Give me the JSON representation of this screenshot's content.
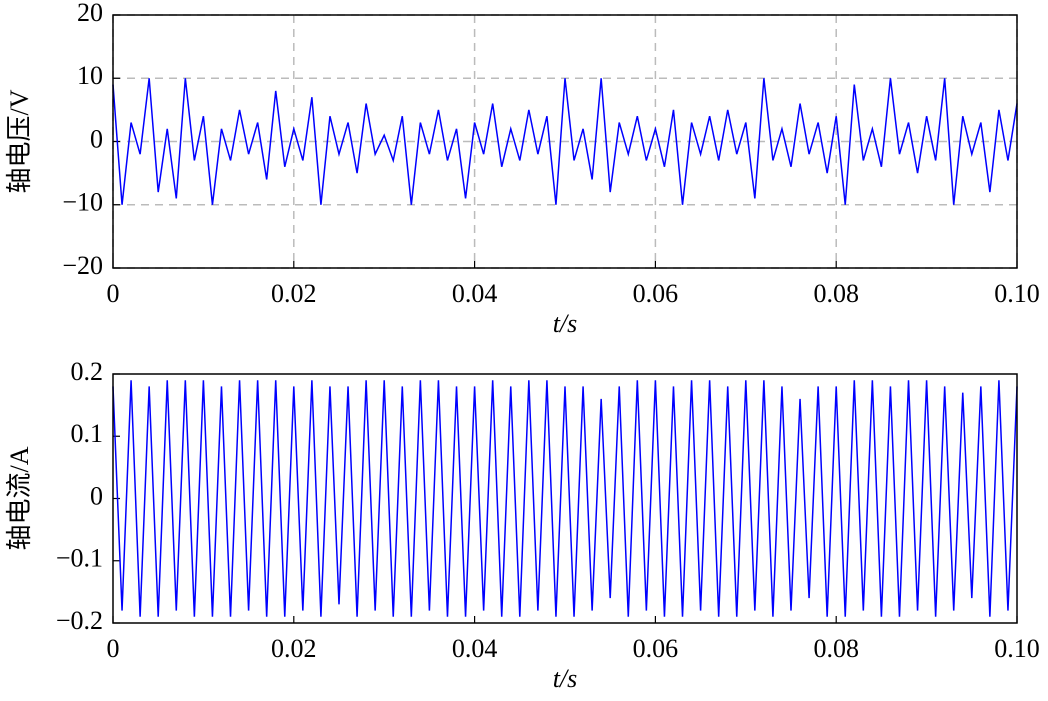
{
  "chart_data": [
    {
      "type": "line",
      "ylabel": "轴电压/V",
      "xlabel": "t/s",
      "color": "#0000ff",
      "grid": true,
      "x": [
        0,
        0.001,
        0.002,
        0.003,
        0.004,
        0.005,
        0.006,
        0.007,
        0.008,
        0.009,
        0.01,
        0.011,
        0.012,
        0.013,
        0.014,
        0.015,
        0.016,
        0.017,
        0.018,
        0.019,
        0.02,
        0.021,
        0.022,
        0.023,
        0.024,
        0.025,
        0.026,
        0.027,
        0.028,
        0.029,
        0.03,
        0.031,
        0.032,
        0.033,
        0.034,
        0.035,
        0.036,
        0.037,
        0.038,
        0.039,
        0.04,
        0.041,
        0.042,
        0.043,
        0.044,
        0.045,
        0.046,
        0.047,
        0.048,
        0.049,
        0.05,
        0.051,
        0.052,
        0.053,
        0.054,
        0.055,
        0.056,
        0.057,
        0.058,
        0.059,
        0.06,
        0.061,
        0.062,
        0.063,
        0.064,
        0.065,
        0.066,
        0.067,
        0.068,
        0.069,
        0.07,
        0.071,
        0.072,
        0.073,
        0.074,
        0.075,
        0.076,
        0.077,
        0.078,
        0.079,
        0.08,
        0.081,
        0.082,
        0.083,
        0.084,
        0.085,
        0.086,
        0.087,
        0.088,
        0.089,
        0.09,
        0.091,
        0.092,
        0.093,
        0.094,
        0.095,
        0.096,
        0.097,
        0.098,
        0.099,
        0.1
      ],
      "values": [
        9,
        -10,
        3,
        -2,
        10,
        -8,
        2,
        -9,
        10,
        -3,
        4,
        -10,
        2,
        -3,
        5,
        -2,
        3,
        -6,
        8,
        -4,
        2,
        -3,
        7,
        -10,
        4,
        -2,
        3,
        -5,
        6,
        -2,
        1,
        -3,
        4,
        -10,
        3,
        -2,
        5,
        -3,
        2,
        -9,
        3,
        -2,
        6,
        -4,
        2,
        -3,
        5,
        -2,
        4,
        -10,
        10,
        -3,
        2,
        -6,
        10,
        -8,
        3,
        -2,
        4,
        -3,
        2,
        -4,
        5,
        -10,
        3,
        -2,
        4,
        -3,
        5,
        -2,
        3,
        -9,
        10,
        -3,
        2,
        -4,
        6,
        -2,
        3,
        -5,
        4,
        -10,
        9,
        -3,
        2,
        -4,
        10,
        -2,
        3,
        -5,
        4,
        -3,
        10,
        -10,
        4,
        -2,
        3,
        -8,
        5,
        -3,
        6
      ],
      "xlim": [
        0,
        0.1
      ],
      "xticks": [
        0,
        0.02,
        0.04,
        0.06,
        0.08,
        {
          "value": 0.1,
          "label": "0.10"
        }
      ],
      "ylim": [
        -20,
        20
      ],
      "yticks": [
        {
          "value": -20,
          "label": "−20"
        },
        {
          "value": -10,
          "label": "−10"
        },
        0,
        10,
        20
      ]
    },
    {
      "type": "line",
      "ylabel": "轴电流/A",
      "xlabel": "t/s",
      "color": "#0000ff",
      "grid": false,
      "x": [
        0,
        0.001,
        0.002,
        0.003,
        0.004,
        0.005,
        0.006,
        0.007,
        0.008,
        0.009,
        0.01,
        0.011,
        0.012,
        0.013,
        0.014,
        0.015,
        0.016,
        0.017,
        0.018,
        0.019,
        0.02,
        0.021,
        0.022,
        0.023,
        0.024,
        0.025,
        0.026,
        0.027,
        0.028,
        0.029,
        0.03,
        0.031,
        0.032,
        0.033,
        0.034,
        0.035,
        0.036,
        0.037,
        0.038,
        0.039,
        0.04,
        0.041,
        0.042,
        0.043,
        0.044,
        0.045,
        0.046,
        0.047,
        0.048,
        0.049,
        0.05,
        0.051,
        0.052,
        0.053,
        0.054,
        0.055,
        0.056,
        0.057,
        0.058,
        0.059,
        0.06,
        0.061,
        0.062,
        0.063,
        0.064,
        0.065,
        0.066,
        0.067,
        0.068,
        0.069,
        0.07,
        0.071,
        0.072,
        0.073,
        0.074,
        0.075,
        0.076,
        0.077,
        0.078,
        0.079,
        0.08,
        0.081,
        0.082,
        0.083,
        0.084,
        0.085,
        0.086,
        0.087,
        0.088,
        0.089,
        0.09,
        0.091,
        0.092,
        0.093,
        0.094,
        0.095,
        0.096,
        0.097,
        0.098,
        0.099,
        0.1
      ],
      "values": [
        0.18,
        -0.18,
        0.19,
        -0.19,
        0.18,
        -0.19,
        0.19,
        -0.18,
        0.19,
        -0.19,
        0.19,
        -0.19,
        0.18,
        -0.19,
        0.19,
        -0.18,
        0.19,
        -0.19,
        0.19,
        -0.19,
        0.18,
        -0.18,
        0.19,
        -0.19,
        0.18,
        -0.17,
        0.18,
        -0.19,
        0.19,
        -0.18,
        0.19,
        -0.19,
        0.18,
        -0.19,
        0.19,
        -0.18,
        0.19,
        -0.19,
        0.18,
        -0.19,
        0.18,
        -0.18,
        0.19,
        -0.19,
        0.18,
        -0.19,
        0.19,
        -0.18,
        0.19,
        -0.19,
        0.18,
        -0.19,
        0.18,
        -0.18,
        0.16,
        -0.16,
        0.18,
        -0.19,
        0.19,
        -0.18,
        0.19,
        -0.19,
        0.18,
        -0.19,
        0.19,
        -0.18,
        0.19,
        -0.19,
        0.18,
        -0.19,
        0.19,
        -0.18,
        0.19,
        -0.19,
        0.18,
        -0.18,
        0.16,
        -0.16,
        0.18,
        -0.19,
        0.18,
        -0.19,
        0.19,
        -0.18,
        0.19,
        -0.19,
        0.18,
        -0.19,
        0.19,
        -0.18,
        0.19,
        -0.19,
        0.18,
        -0.18,
        0.17,
        -0.16,
        0.18,
        -0.19,
        0.19,
        -0.18,
        0.18
      ],
      "xlim": [
        0,
        0.1
      ],
      "xticks": [
        0,
        0.02,
        0.04,
        0.06,
        0.08,
        {
          "value": 0.1,
          "label": "0.10"
        }
      ],
      "ylim": [
        -0.2,
        0.2
      ],
      "yticks": [
        {
          "value": -0.2,
          "label": "−0.2"
        },
        {
          "value": -0.1,
          "label": "−0.1"
        },
        0,
        0.1,
        0.2
      ]
    }
  ]
}
